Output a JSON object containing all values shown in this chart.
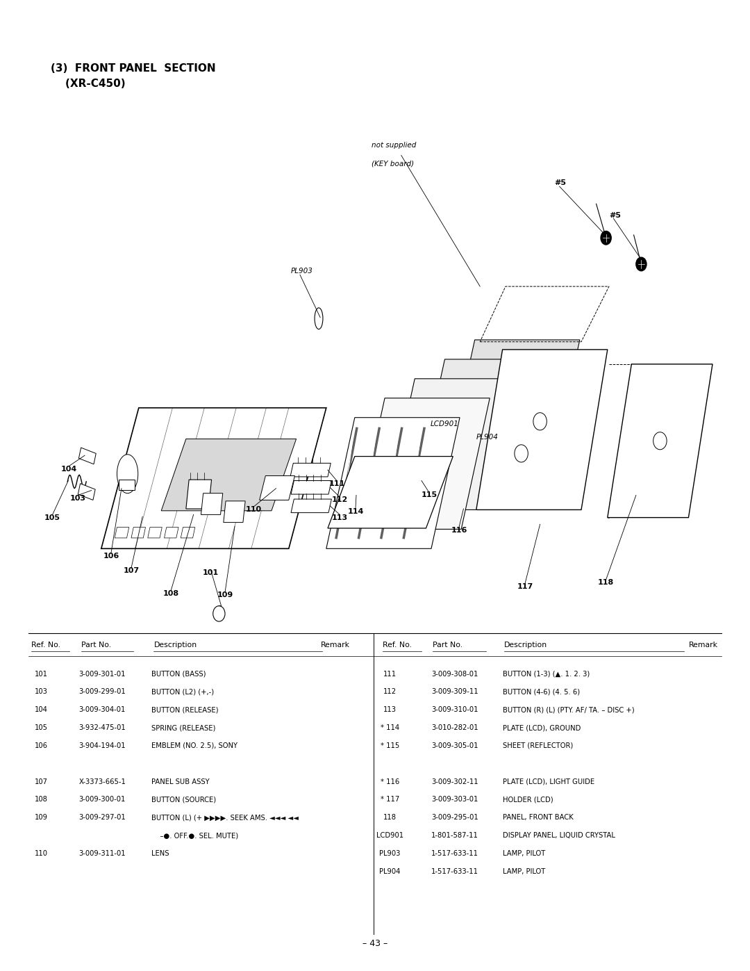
{
  "title_line1": "(3)  FRONT PANEL  SECTION",
  "title_line2": "    (XR-C450)",
  "page_number": "– 43 –",
  "background_color": "#ffffff",
  "text_color": "#000000",
  "parts_left": [
    [
      "101",
      "3-009-301-01",
      "BUTTON (BASS)"
    ],
    [
      "103",
      "3-009-299-01",
      "BUTTON (L2) (+,-)"
    ],
    [
      "104",
      "3-009-304-01",
      "BUTTON (RELEASE)"
    ],
    [
      "105",
      "3-932-475-01",
      "SPRING (RELEASE)"
    ],
    [
      "106",
      "3-904-194-01",
      "EMBLEM (NO. 2.5), SONY"
    ],
    [
      "",
      "",
      ""
    ],
    [
      "107",
      "X-3373-665-1",
      "PANEL SUB ASSY"
    ],
    [
      "108",
      "3-009-300-01",
      "BUTTON (SOURCE)"
    ],
    [
      "109",
      "3-009-297-01",
      "BUTTON (L) (+ ▶▶▶▶. SEEK AMS. ◄◄◄ ◄◄"
    ],
    [
      "",
      "",
      "    –●. OFF.●. SEL. MUTE)"
    ],
    [
      "110",
      "3-009-311-01",
      "LENS"
    ]
  ],
  "parts_right": [
    [
      "111",
      "3-009-308-01",
      "BUTTON (1-3) (▲. 1. 2. 3)"
    ],
    [
      "112",
      "3-009-309-11",
      "BUTTON (4-6) (4. 5. 6)"
    ],
    [
      "113",
      "3-009-310-01",
      "BUTTON (R) (L) (PTY. AF/ TA. – DISC +)"
    ],
    [
      "* 114",
      "3-010-282-01",
      "PLATE (LCD), GROUND"
    ],
    [
      "* 115",
      "3-009-305-01",
      "SHEET (REFLECTOR)"
    ],
    [
      "",
      "",
      ""
    ],
    [
      "* 116",
      "3-009-302-11",
      "PLATE (LCD), LIGHT GUIDE"
    ],
    [
      "* 117",
      "3-009-303-01",
      "HOLDER (LCD)"
    ],
    [
      "118",
      "3-009-295-01",
      "PANEL, FRONT BACK"
    ],
    [
      "LCD901",
      "1-801-587-11",
      "DISPLAY PANEL, LIQUID CRYSTAL"
    ],
    [
      "PL903",
      "1-517-633-11",
      "LAMP, PILOT"
    ],
    [
      "PL904",
      "1-517-633-11",
      "LAMP, PILOT"
    ]
  ]
}
